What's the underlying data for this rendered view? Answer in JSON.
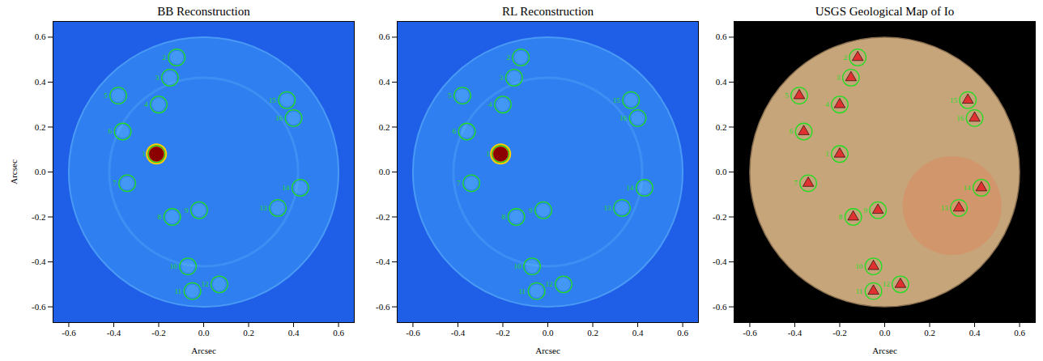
{
  "chart_data": [
    {
      "type": "scatter",
      "title": "BB Reconstruction",
      "xlabel": "Arcsec",
      "ylabel": "Arcsec",
      "x": [
        -0.21,
        -0.12,
        -0.15,
        -0.2,
        -0.38,
        -0.36,
        -0.34,
        -0.14,
        -0.02,
        -0.07,
        -0.05,
        0.07,
        0.33,
        0.43,
        0.37,
        0.4
      ],
      "y": [
        0.08,
        0.51,
        0.42,
        0.3,
        0.34,
        0.18,
        -0.05,
        -0.2,
        -0.17,
        -0.42,
        -0.53,
        -0.5,
        -0.16,
        -0.07,
        0.32,
        0.24
      ],
      "labels": [
        "1",
        "2",
        "3",
        "4",
        "5",
        "6",
        "7",
        "8",
        "9",
        "10",
        "11",
        "12",
        "13",
        "14",
        "15",
        "16"
      ],
      "color": "#22dd22",
      "marker": "circle",
      "xlim": [
        -0.67,
        0.67
      ],
      "ylim": [
        -0.67,
        0.67
      ],
      "xticks": [
        -0.6,
        -0.4,
        -0.2,
        {
          "value": 0,
          "label": "0.0"
        },
        0.2,
        0.4,
        0.6
      ],
      "yticks": [
        -0.6,
        -0.4,
        -0.2,
        {
          "value": 0,
          "label": "0.0"
        },
        0.2,
        0.4,
        0.6
      ]
    },
    {
      "type": "scatter",
      "title": "RL Reconstruction",
      "xlabel": "Arcsec",
      "x": [
        -0.21,
        -0.12,
        -0.15,
        -0.2,
        -0.38,
        -0.36,
        -0.34,
        -0.14,
        -0.02,
        -0.07,
        -0.05,
        0.07,
        0.33,
        0.43,
        0.37,
        0.4
      ],
      "y": [
        0.08,
        0.51,
        0.42,
        0.3,
        0.34,
        0.18,
        -0.05,
        -0.2,
        -0.17,
        -0.42,
        -0.53,
        -0.5,
        -0.16,
        -0.07,
        0.32,
        0.24
      ],
      "labels": [
        "1",
        "2",
        "3",
        "4",
        "5",
        "6",
        "7",
        "8",
        "9",
        "10",
        "11",
        "12",
        "13",
        "14",
        "15",
        "16"
      ],
      "color": "#22dd22",
      "marker": "circle",
      "xlim": [
        -0.67,
        0.67
      ],
      "ylim": [
        -0.67,
        0.67
      ],
      "xticks": [
        -0.6,
        -0.4,
        -0.2,
        {
          "value": 0,
          "label": "0.0"
        },
        0.2,
        0.4,
        0.6
      ],
      "yticks": [
        -0.6,
        -0.4,
        -0.2,
        {
          "value": 0,
          "label": "0.0"
        },
        0.2,
        0.4,
        0.6
      ]
    },
    {
      "type": "scatter",
      "title": "USGS Geological Map of Io",
      "xlabel": "Arcsec",
      "x": [
        -0.2,
        -0.12,
        -0.15,
        -0.2,
        -0.38,
        -0.36,
        -0.34,
        -0.14,
        -0.03,
        -0.05,
        -0.05,
        0.07,
        0.33,
        0.43,
        0.37,
        0.4
      ],
      "y": [
        0.08,
        0.51,
        0.42,
        0.3,
        0.34,
        0.18,
        -0.05,
        -0.2,
        -0.17,
        -0.42,
        -0.53,
        -0.5,
        -0.16,
        -0.07,
        0.32,
        0.24
      ],
      "labels": [
        "1",
        "2",
        "3",
        "4",
        "5",
        "6",
        "7",
        "8",
        "9",
        "10",
        "11",
        "12",
        "13",
        "14",
        "15",
        "16"
      ],
      "color": "#22dd22",
      "marker": "circle",
      "xlim": [
        -0.67,
        0.67
      ],
      "ylim": [
        -0.67,
        0.67
      ],
      "xticks": [
        -0.6,
        -0.4,
        -0.2,
        {
          "value": 0,
          "label": "0.0"
        },
        0.2,
        0.4,
        0.6
      ],
      "yticks": [
        -0.6,
        -0.4,
        -0.2,
        {
          "value": 0,
          "label": "0.0"
        },
        0.2,
        0.4,
        0.6
      ]
    }
  ]
}
